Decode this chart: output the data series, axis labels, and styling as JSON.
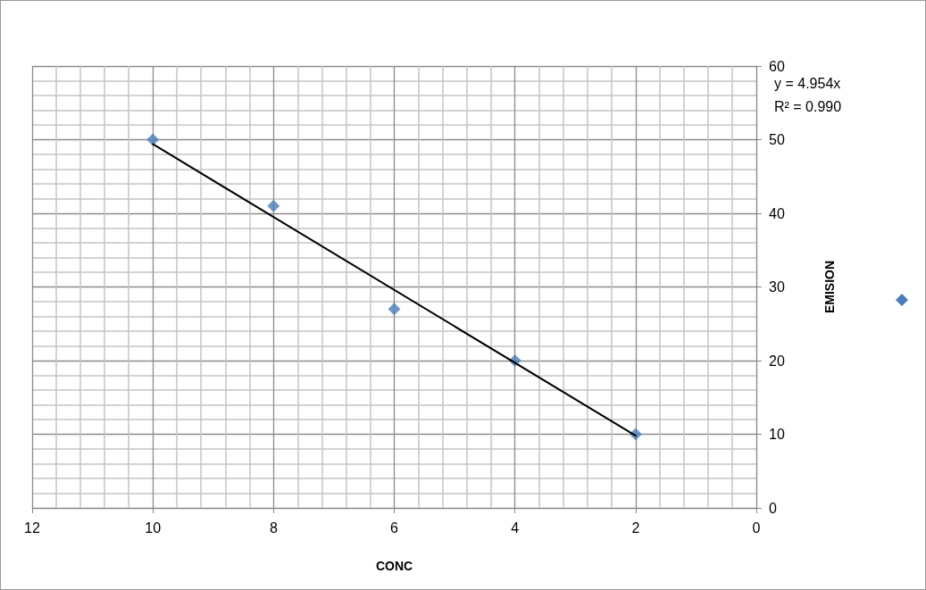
{
  "chart_data": {
    "type": "scatter",
    "xlabel": "CONC",
    "ylabel": "EMISION",
    "annotations": [
      "y = 4.954x",
      "R² = 0.990"
    ],
    "series": [
      {
        "color": "#4a7ebb",
        "x": [
          10,
          8,
          6,
          4,
          2
        ],
        "values": [
          50,
          41,
          27,
          20,
          10
        ]
      },
      {
        "type": "line",
        "color": "#000000",
        "marker": "none",
        "x": [
          10,
          2
        ],
        "values": [
          49.4,
          9.8
        ]
      }
    ],
    "xlim": [
      12,
      0
    ],
    "xticks": [
      12,
      10,
      8,
      6,
      4,
      2,
      0
    ],
    "ylim": [
      0,
      60
    ],
    "yticks": [
      0,
      10,
      20,
      30,
      40,
      50,
      60
    ],
    "grid": true,
    "marker": "diamond"
  }
}
